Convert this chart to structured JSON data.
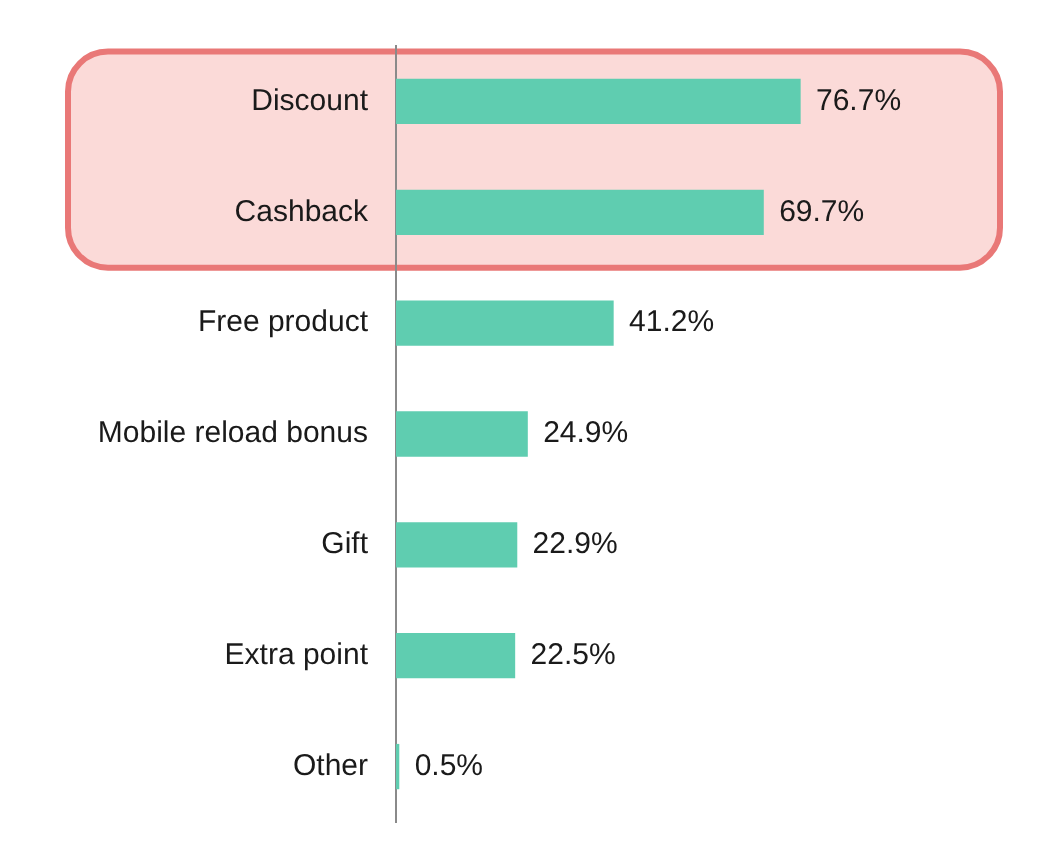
{
  "chart_data": {
    "type": "bar",
    "orientation": "horizontal",
    "categories": [
      "Discount",
      "Cashback",
      "Free product",
      "Mobile reload bonus",
      "Gift",
      "Extra point",
      "Other"
    ],
    "values": [
      76.7,
      69.7,
      41.2,
      24.9,
      22.9,
      22.5,
      0.5
    ],
    "value_labels": [
      "76.7%",
      "69.7%",
      "41.2%",
      "24.9%",
      "22.9%",
      "22.5%",
      "0.5%"
    ],
    "color": "#5fcdb0",
    "bands": [
      {
        "axis": "y",
        "from": "Discount",
        "to": "Cashback",
        "color": "#fbdad8"
      }
    ],
    "tick_labels": "y"
  }
}
